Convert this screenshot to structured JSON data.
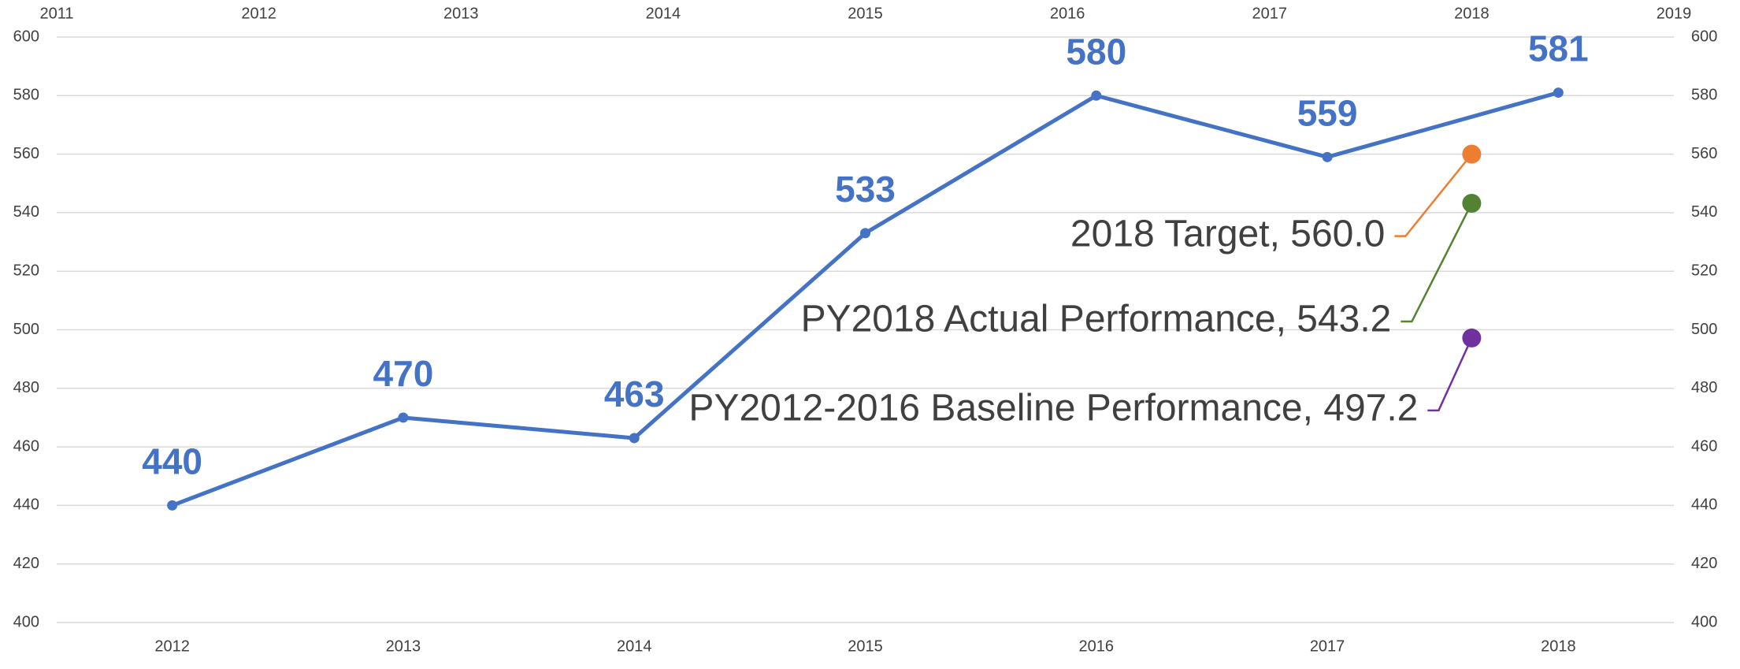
{
  "chart_data": {
    "type": "line",
    "categories": [
      "2012",
      "2013",
      "2014",
      "2015",
      "2016",
      "2017",
      "2018"
    ],
    "series": [
      {
        "color": "#4472c4",
        "values": [
          440,
          470,
          463,
          533,
          580,
          559,
          581
        ]
      }
    ],
    "ylim": [
      400,
      600
    ],
    "yticks": [
      400,
      420,
      440,
      460,
      480,
      500,
      520,
      540,
      560,
      580,
      600
    ],
    "y2lim": [
      400,
      600
    ],
    "y2ticks": [
      400,
      420,
      440,
      460,
      480,
      500,
      520,
      540,
      560,
      580,
      600
    ],
    "x2lim": [
      2011,
      2019
    ],
    "x2ticks": [
      2011,
      2012,
      2013,
      2014,
      2015,
      2016,
      2017,
      2018,
      2019
    ],
    "grid": true,
    "points": [
      {
        "label": "2018 Target, 560.0",
        "x": 2018,
        "y": 560,
        "color": "#ed7d31"
      },
      {
        "label": "PY2018 Actual Performance, 543.2",
        "x": 2018,
        "y": 543.2,
        "color": "#548235"
      },
      {
        "label": "PY2012-2016 Baseline Performance, 497.2",
        "x": 2018,
        "y": 497.2,
        "color": "#7030a0"
      }
    ]
  }
}
